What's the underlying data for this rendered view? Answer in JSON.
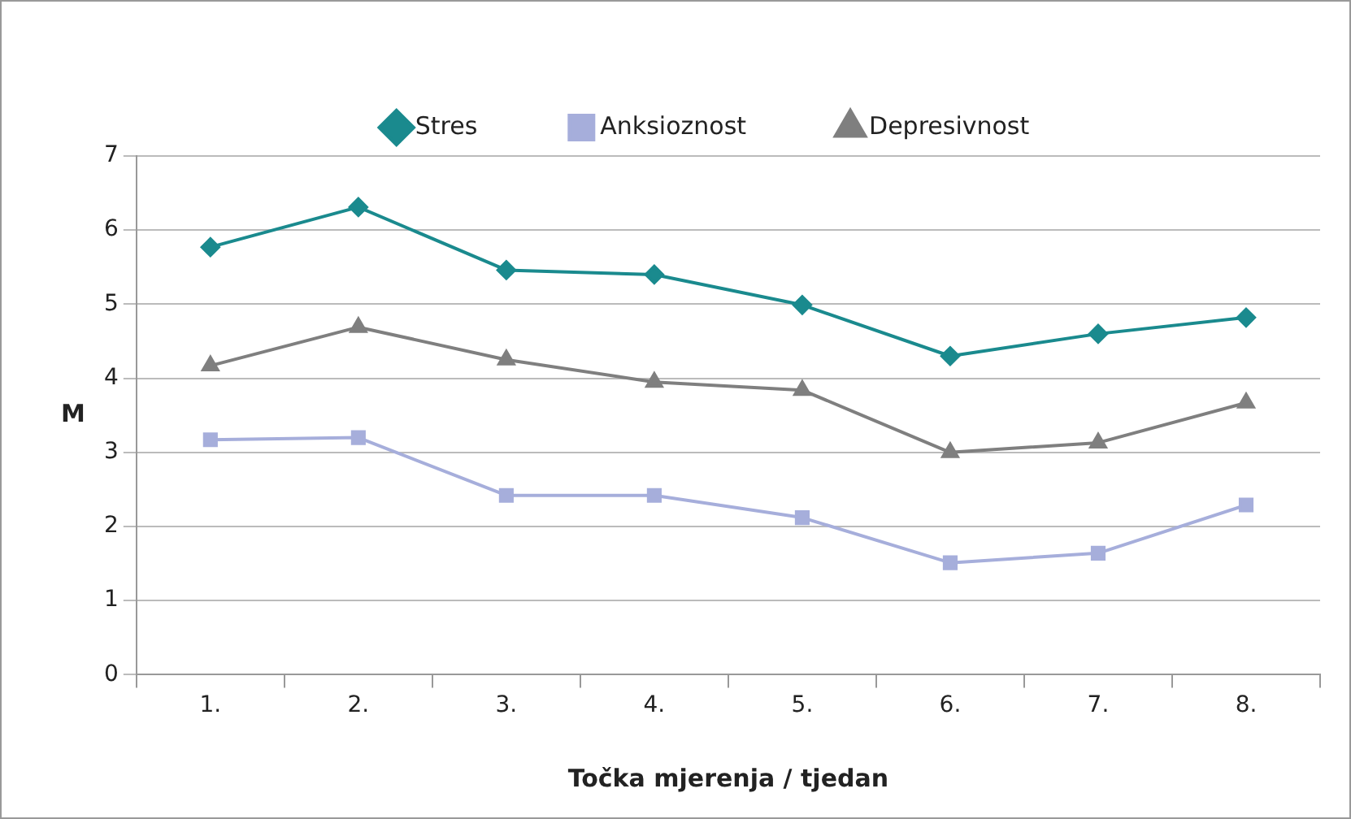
{
  "chart_data": {
    "type": "line",
    "xlabel": "Točka mjerenja / tjedan",
    "ylabel": "M",
    "categories": [
      "1.",
      "2.",
      "3.",
      "4.",
      "5.",
      "6.",
      "7.",
      "8."
    ],
    "series": [
      {
        "name": "Stres",
        "color": "#1a8a8e",
        "marker": "diamond",
        "values": [
          5.77,
          6.31,
          5.46,
          5.4,
          4.99,
          4.3,
          4.6,
          4.82
        ]
      },
      {
        "name": "Anksioznost",
        "color": "#a6aedb",
        "marker": "square",
        "values": [
          3.17,
          3.2,
          2.42,
          2.42,
          2.12,
          1.51,
          1.64,
          2.29
        ]
      },
      {
        "name": "Depresivnost",
        "color": "#7f7f7f",
        "marker": "triangle",
        "values": [
          4.17,
          4.69,
          4.25,
          3.95,
          3.84,
          3.0,
          3.13,
          3.67
        ]
      }
    ],
    "ylim": [
      0,
      7
    ],
    "yticks": [
      0,
      1,
      2,
      3,
      4,
      5,
      6,
      7
    ],
    "grid": "y",
    "legend": "top",
    "line_style": "solid"
  }
}
